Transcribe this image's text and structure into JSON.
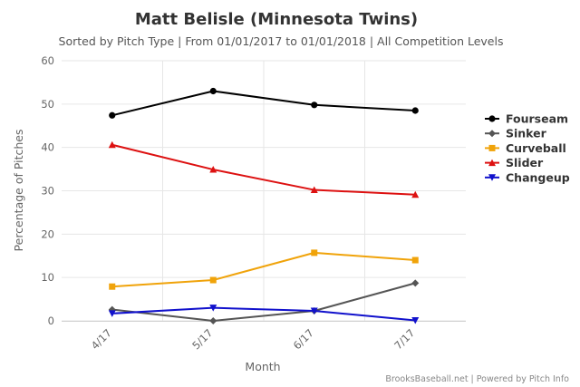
{
  "chart_data": {
    "type": "line",
    "title": "Matt Belisle (Minnesota Twins)",
    "subtitle": "Sorted by Pitch Type | From 01/01/2017 to 01/01/2018 | All Competition Levels",
    "xlabel": "Month",
    "ylabel": "Percentage of Pitches",
    "categories": [
      "4/17",
      "5/17",
      "6/17",
      "7/17"
    ],
    "ylim": [
      0,
      60
    ],
    "yticks": [
      "0",
      "10",
      "20",
      "30",
      "40",
      "50",
      "60"
    ],
    "grid": true,
    "legend_position": "right",
    "credits": "BrooksBaseball.net | Powered by Pitch Info",
    "series": [
      {
        "name": "Fourseam",
        "values": [
          47.4,
          53.0,
          49.8,
          48.5
        ],
        "color": "#000000",
        "marker": "circle"
      },
      {
        "name": "Sinker",
        "values": [
          2.6,
          0.0,
          2.3,
          8.7
        ],
        "color": "#555555",
        "marker": "diamond"
      },
      {
        "name": "Curveball",
        "values": [
          7.9,
          9.4,
          15.7,
          14.0
        ],
        "color": "#f0a30a",
        "marker": "square"
      },
      {
        "name": "Slider",
        "values": [
          40.6,
          34.9,
          30.2,
          29.1
        ],
        "color": "#dd1111",
        "marker": "triangle"
      },
      {
        "name": "Changeup",
        "values": [
          1.7,
          3.0,
          2.3,
          0.1
        ],
        "color": "#1111cc",
        "marker": "triangle-down"
      }
    ]
  }
}
